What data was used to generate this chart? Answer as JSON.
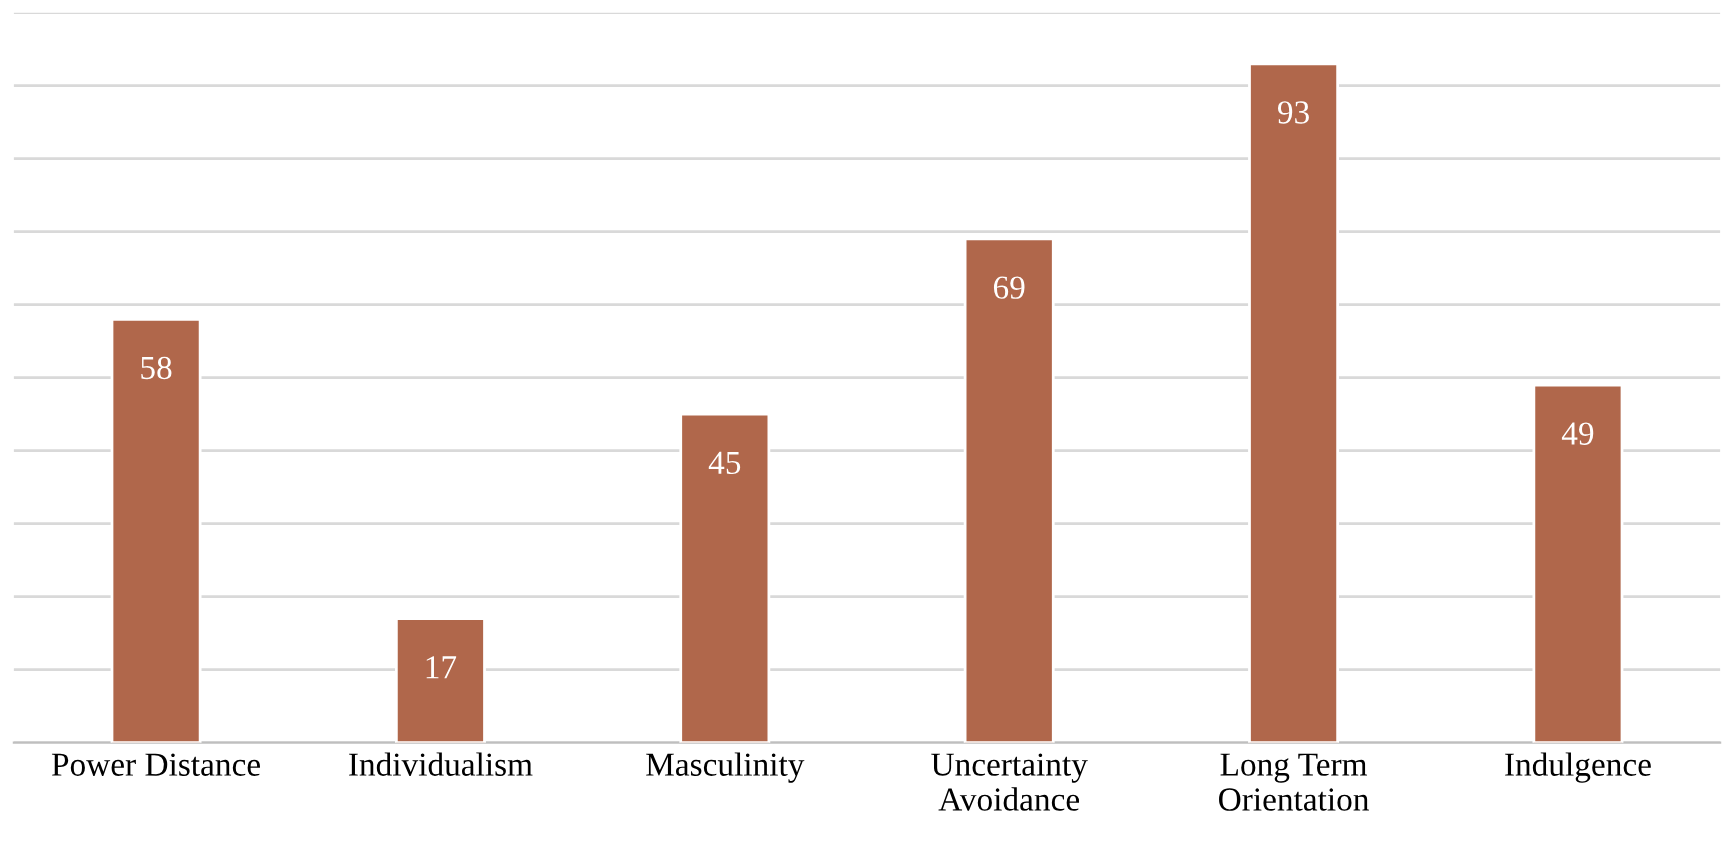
{
  "chart_data": {
    "type": "bar",
    "categories": [
      "Power Distance",
      "Individualism",
      "Masculinity",
      "Uncertainty\nAvoidance",
      "Long Term\nOrientation",
      "Indulgence"
    ],
    "values": [
      58,
      17,
      45,
      69,
      93,
      49
    ],
    "color": "#b0674b",
    "ylim": [
      0,
      100
    ],
    "yticks": [
      {
        "value": 0,
        "label": null
      },
      {
        "value": 10,
        "label": null
      },
      {
        "value": 20,
        "label": null
      },
      {
        "value": 30,
        "label": null
      },
      {
        "value": 40,
        "label": null
      },
      {
        "value": 50,
        "label": null
      },
      {
        "value": 60,
        "label": null
      },
      {
        "value": 70,
        "label": null
      },
      {
        "value": 80,
        "label": null
      },
      {
        "value": 90,
        "label": null
      },
      {
        "value": 100,
        "label": null
      }
    ],
    "grid": "y",
    "tick_labels": "x",
    "data_labels": true
  }
}
